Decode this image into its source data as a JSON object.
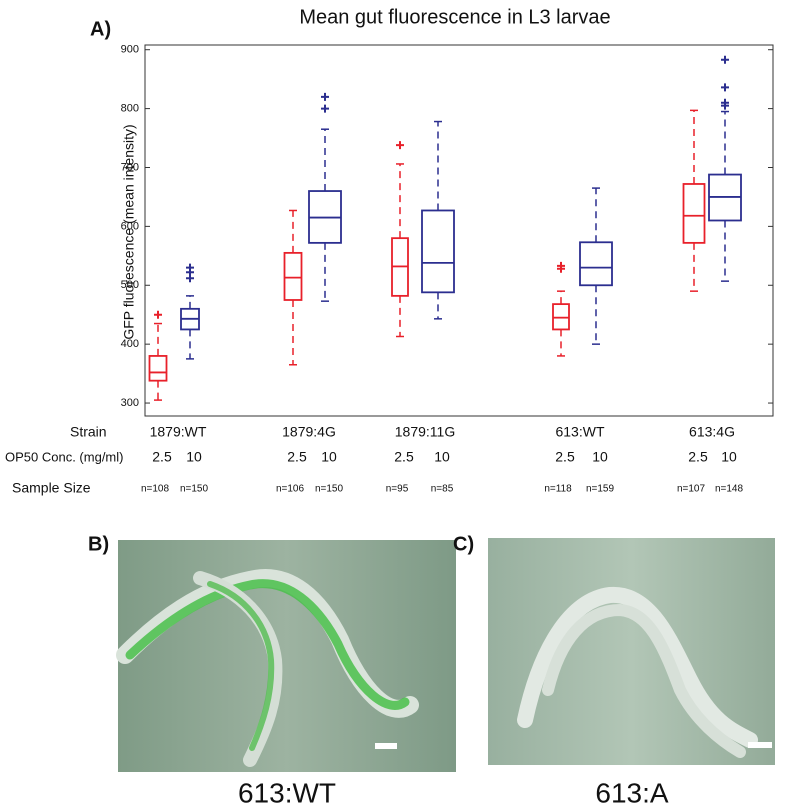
{
  "chart_data": {
    "type": "box",
    "panel_label": "A)",
    "title": "Mean gut fluorescence in L3 larvae",
    "y_label": "GFP fluorescence (mean intensity)",
    "ylim": [
      278,
      908
    ],
    "yticks": [
      300,
      400,
      500,
      600,
      700,
      800,
      900
    ],
    "row_labels": [
      "Strain",
      "OP50 Conc. (mg/ml)",
      "Sample Size"
    ],
    "groups": [
      {
        "strain": "1879:WT",
        "boxes": [
          {
            "color": "#e8202a",
            "concentration": "2.5",
            "sample_size": "n=108",
            "whisker_low": 305,
            "q1": 338,
            "median": 352,
            "q3": 380,
            "whisker_high": 435,
            "outliers": [
              450
            ]
          },
          {
            "color": "#2b2e8f",
            "concentration": "10",
            "sample_size": "n=150",
            "whisker_low": 375,
            "q1": 425,
            "median": 443,
            "q3": 460,
            "whisker_high": 482,
            "outliers": [
              512,
              522,
              530
            ]
          }
        ]
      },
      {
        "strain": "1879:4G",
        "boxes": [
          {
            "color": "#e8202a",
            "concentration": "2.5",
            "sample_size": "n=106",
            "whisker_low": 365,
            "q1": 475,
            "median": 513,
            "q3": 555,
            "whisker_high": 627,
            "outliers": []
          },
          {
            "color": "#2b2e8f",
            "concentration": "10",
            "sample_size": "n=150",
            "whisker_low": 473,
            "q1": 572,
            "median": 615,
            "q3": 660,
            "whisker_high": 765,
            "outliers": [
              800,
              820
            ]
          }
        ]
      },
      {
        "strain": "1879:11G",
        "boxes": [
          {
            "color": "#e8202a",
            "concentration": "2.5",
            "sample_size": "n=95",
            "whisker_low": 413,
            "q1": 482,
            "median": 532,
            "q3": 580,
            "whisker_high": 706,
            "outliers": [
              738
            ]
          },
          {
            "color": "#2b2e8f",
            "concentration": "10",
            "sample_size": "n=85",
            "whisker_low": 443,
            "q1": 488,
            "median": 538,
            "q3": 627,
            "whisker_high": 778,
            "outliers": []
          }
        ]
      },
      {
        "strain": "613:WT",
        "boxes": [
          {
            "color": "#e8202a",
            "concentration": "2.5",
            "sample_size": "n=118",
            "whisker_low": 380,
            "q1": 425,
            "median": 445,
            "q3": 468,
            "whisker_high": 490,
            "outliers": [
              528,
              533
            ]
          },
          {
            "color": "#2b2e8f",
            "concentration": "10",
            "sample_size": "n=159",
            "whisker_low": 400,
            "q1": 500,
            "median": 530,
            "q3": 573,
            "whisker_high": 665,
            "outliers": []
          }
        ]
      },
      {
        "strain": "613:4G",
        "boxes": [
          {
            "color": "#e8202a",
            "concentration": "2.5",
            "sample_size": "n=107",
            "whisker_low": 490,
            "q1": 572,
            "median": 618,
            "q3": 672,
            "whisker_high": 797,
            "outliers": []
          },
          {
            "color": "#2b2e8f",
            "concentration": "10",
            "sample_size": "n=148",
            "whisker_low": 507,
            "q1": 610,
            "median": 650,
            "q3": 688,
            "whisker_high": 795,
            "outliers": [
              805,
              810,
              836,
              883
            ]
          }
        ]
      }
    ]
  },
  "images": [
    {
      "panel_label": "B)",
      "caption": "613:WT"
    },
    {
      "panel_label": "C)",
      "caption": "613:A"
    }
  ]
}
